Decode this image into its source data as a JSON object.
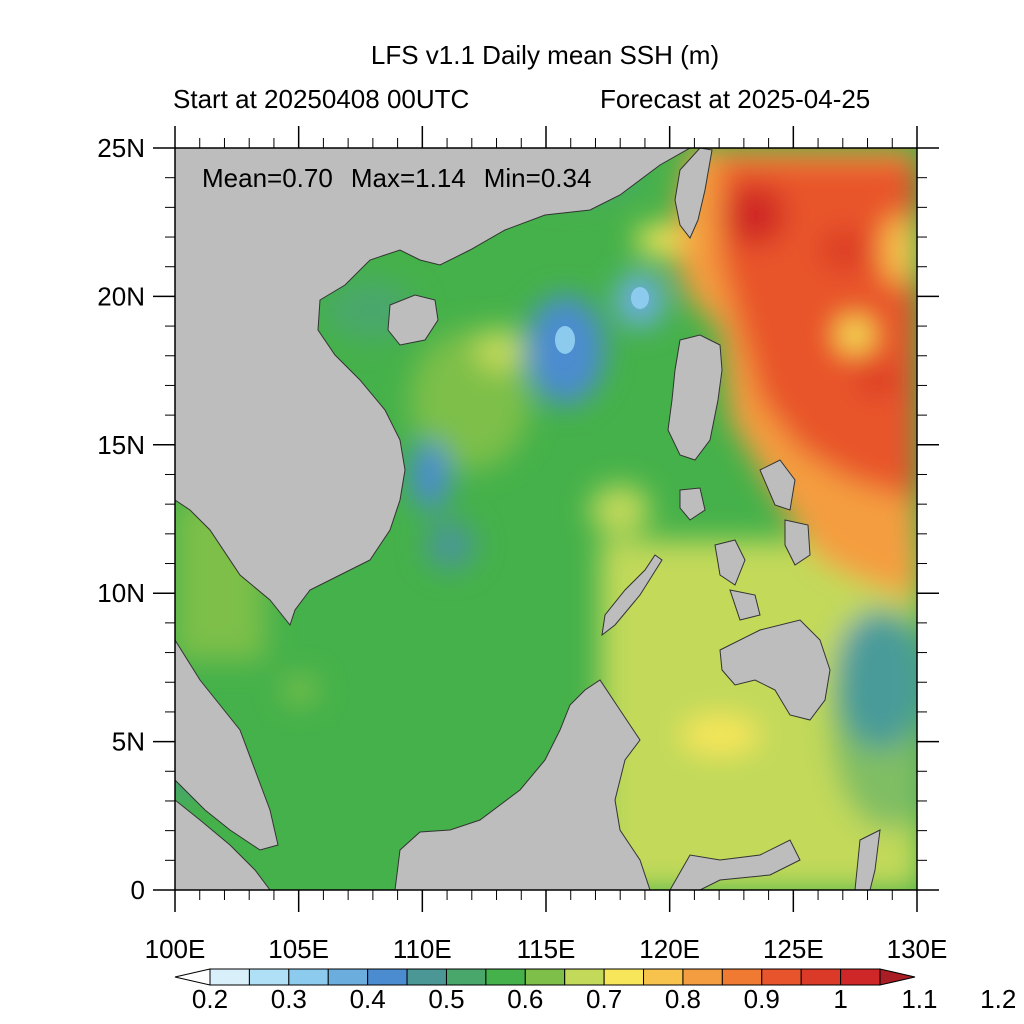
{
  "title": "LFS v1.1 Daily mean SSH (m)",
  "subtitle_left": "Start at 20250408 00UTC",
  "subtitle_right": "Forecast at 2025-04-25",
  "stats": {
    "mean": "Mean=0.70",
    "max": "Max=1.14",
    "min": "Min=0.34"
  },
  "colors": {
    "land": "#bdbdbd",
    "frame": "#000000"
  },
  "map": {
    "lon_range": [
      100,
      130
    ],
    "lat_range": [
      0,
      25
    ],
    "lon_ticks": [
      {
        "v": 100,
        "label": "100E"
      },
      {
        "v": 105,
        "label": "105E"
      },
      {
        "v": 110,
        "label": "110E"
      },
      {
        "v": 115,
        "label": "115E"
      },
      {
        "v": 120,
        "label": "120E"
      },
      {
        "v": 125,
        "label": "125E"
      },
      {
        "v": 130,
        "label": "130E"
      }
    ],
    "lat_ticks": [
      {
        "v": 0,
        "label": "0"
      },
      {
        "v": 5,
        "label": "5N"
      },
      {
        "v": 10,
        "label": "10N"
      },
      {
        "v": 15,
        "label": "15N"
      },
      {
        "v": 20,
        "label": "20N"
      },
      {
        "v": 25,
        "label": "25N"
      }
    ]
  },
  "colorbar": {
    "colors": [
      "#ffffff",
      "#d9f0fb",
      "#b0e0f5",
      "#8ccbee",
      "#6baede",
      "#4b8cd0",
      "#4a9796",
      "#4aa76c",
      "#45b14a",
      "#7dbf48",
      "#c2d95a",
      "#f7e65a",
      "#f8c34d",
      "#f49d40",
      "#f07a32",
      "#e8552c",
      "#db3a28",
      "#cf2627",
      "#a91d24"
    ],
    "labels": [
      "0.2",
      "0.3",
      "0.4",
      "0.5",
      "0.6",
      "0.7",
      "0.8",
      "0.9",
      "1",
      "1.1",
      "1.2"
    ],
    "range": [
      0.2,
      1.2
    ],
    "step": 0.05
  }
}
